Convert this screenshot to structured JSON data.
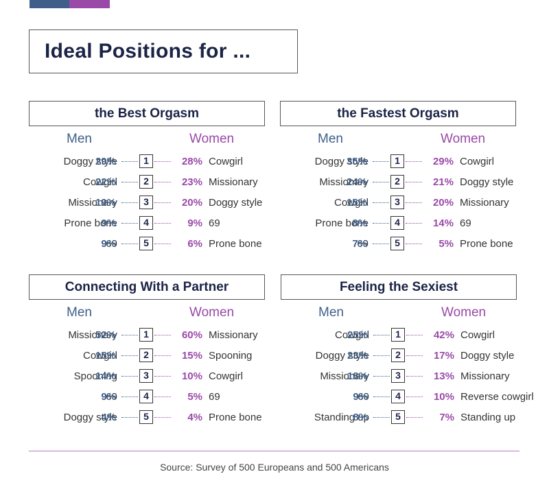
{
  "title": "Ideal Positions for ...",
  "source": "Source: Survey of 500 Europeans and 500 Americans",
  "colors": {
    "men": "#3f5f8a",
    "women": "#9a49a8",
    "title": "#1b2346"
  },
  "labels": {
    "men": "Men",
    "women": "Women"
  },
  "chart_data": [
    {
      "type": "table",
      "title": "the Best Orgasm",
      "ranks": [
        "1",
        "2",
        "3",
        "4",
        "5"
      ],
      "men": [
        {
          "name": "Doggy style",
          "pct": "29%"
        },
        {
          "name": "Cowgirl",
          "pct": "22%"
        },
        {
          "name": "Missionary",
          "pct": "19%"
        },
        {
          "name": "Prone bone",
          "pct": "9%"
        },
        {
          "name": "69",
          "pct": "9%"
        }
      ],
      "women": [
        {
          "name": "Cowgirl",
          "pct": "28%"
        },
        {
          "name": "Missionary",
          "pct": "23%"
        },
        {
          "name": "Doggy style",
          "pct": "20%"
        },
        {
          "name": "69",
          "pct": "9%"
        },
        {
          "name": "Prone bone",
          "pct": "6%"
        }
      ]
    },
    {
      "type": "table",
      "title": "the Fastest Orgasm",
      "ranks": [
        "1",
        "2",
        "3",
        "4",
        "5"
      ],
      "men": [
        {
          "name": "Doggy style",
          "pct": "35%"
        },
        {
          "name": "Missionary",
          "pct": "24%"
        },
        {
          "name": "Cowgirl",
          "pct": "15%"
        },
        {
          "name": "Prone bone",
          "pct": "8%"
        },
        {
          "name": "69",
          "pct": "7%"
        }
      ],
      "women": [
        {
          "name": "Cowgirl",
          "pct": "29%"
        },
        {
          "name": "Doggy style",
          "pct": "21%"
        },
        {
          "name": "Missionary",
          "pct": "20%"
        },
        {
          "name": "69",
          "pct": "14%"
        },
        {
          "name": "Prone bone",
          "pct": "5%"
        }
      ]
    },
    {
      "type": "table",
      "title": "Connecting With a Partner",
      "ranks": [
        "1",
        "2",
        "3",
        "4",
        "5"
      ],
      "men": [
        {
          "name": "Missionary",
          "pct": "52%"
        },
        {
          "name": "Cowgirl",
          "pct": "15%"
        },
        {
          "name": "Spooning",
          "pct": "14%"
        },
        {
          "name": "69",
          "pct": "9%"
        },
        {
          "name": "Doggy style",
          "pct": "4%"
        }
      ],
      "women": [
        {
          "name": "Missionary",
          "pct": "60%"
        },
        {
          "name": "Spooning",
          "pct": "15%"
        },
        {
          "name": "Cowgirl",
          "pct": "10%"
        },
        {
          "name": "69",
          "pct": "5%"
        },
        {
          "name": "Prone bone",
          "pct": "4%"
        }
      ]
    },
    {
      "type": "table",
      "title": "Feeling the Sexiest",
      "ranks": [
        "1",
        "2",
        "3",
        "4",
        "5"
      ],
      "men": [
        {
          "name": "Cowgirl",
          "pct": "25%"
        },
        {
          "name": "Doggy style",
          "pct": "23%"
        },
        {
          "name": "Missionary",
          "pct": "18%"
        },
        {
          "name": "69",
          "pct": "9%"
        },
        {
          "name": "Standing up",
          "pct": "8%"
        }
      ],
      "women": [
        {
          "name": "Cowgirl",
          "pct": "42%"
        },
        {
          "name": "Doggy style",
          "pct": "17%"
        },
        {
          "name": "Missionary",
          "pct": "13%"
        },
        {
          "name": "Reverse cowgirl",
          "pct": "10%"
        },
        {
          "name": "Standing up",
          "pct": "7%"
        }
      ]
    }
  ]
}
